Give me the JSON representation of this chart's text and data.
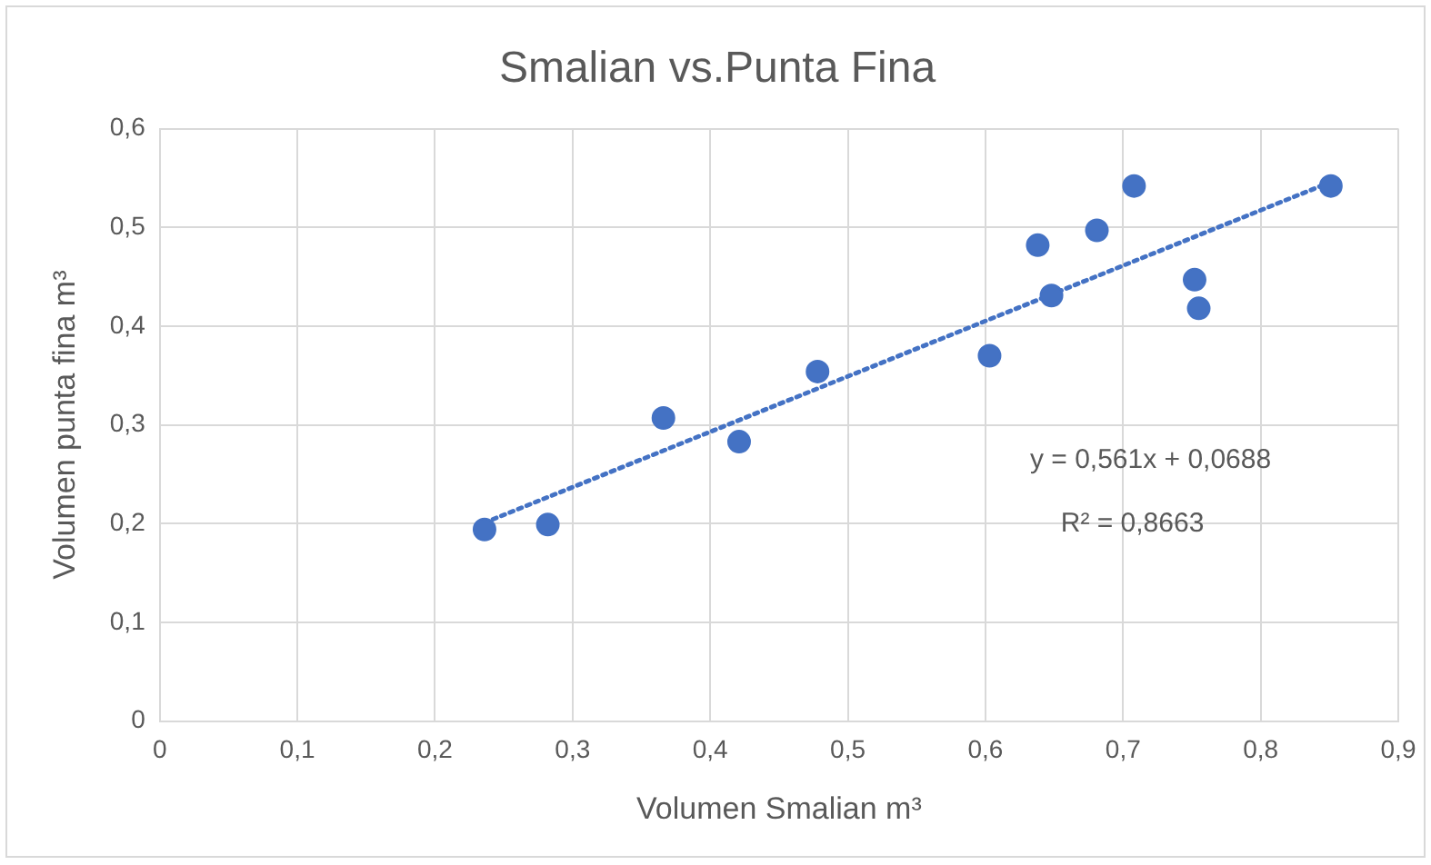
{
  "chart_data": {
    "type": "scatter",
    "title": "Smalian vs.Punta Fina",
    "xlabel": "Volumen Smalian m³",
    "ylabel": "Volumen punta fina m³",
    "x": [
      0.236,
      0.282,
      0.366,
      0.421,
      0.478,
      0.603,
      0.638,
      0.648,
      0.681,
      0.708,
      0.752,
      0.755,
      0.851
    ],
    "series": [
      {
        "color": "#4472c4",
        "marker": "circle",
        "values": [
          0.194,
          0.199,
          0.307,
          0.283,
          0.354,
          0.37,
          0.482,
          0.431,
          0.497,
          0.542,
          0.447,
          0.418,
          0.542
        ]
      },
      {
        "type": "line",
        "color": "#4472c4",
        "line_style": "dotted",
        "marker": "none",
        "x": [
          0.236,
          0.851
        ],
        "values": [
          0.201,
          0.546
        ]
      }
    ],
    "xlim": [
      0,
      0.9
    ],
    "ylim": [
      0,
      0.6
    ],
    "xticks": [
      0,
      {
        "value": 0.1,
        "label": "0,1"
      },
      {
        "value": 0.2,
        "label": "0,2"
      },
      {
        "value": 0.3,
        "label": "0,3"
      },
      {
        "value": 0.4,
        "label": "0,4"
      },
      {
        "value": 0.5,
        "label": "0,5"
      },
      {
        "value": 0.6,
        "label": "0,6"
      },
      {
        "value": 0.7,
        "label": "0,7"
      },
      {
        "value": 0.8,
        "label": "0,8"
      },
      {
        "value": 0.9,
        "label": "0,9"
      }
    ],
    "yticks": [
      0,
      {
        "value": 0.1,
        "label": "0,1"
      },
      {
        "value": 0.2,
        "label": "0,2"
      },
      {
        "value": 0.3,
        "label": "0,3"
      },
      {
        "value": 0.4,
        "label": "0,4"
      },
      {
        "value": 0.5,
        "label": "0,5"
      },
      {
        "value": 0.6,
        "label": "0,6"
      }
    ],
    "annotations": [
      "y = 0,561x + 0,0688",
      "R² = 0,8663"
    ],
    "grid": true,
    "legend": false
  }
}
